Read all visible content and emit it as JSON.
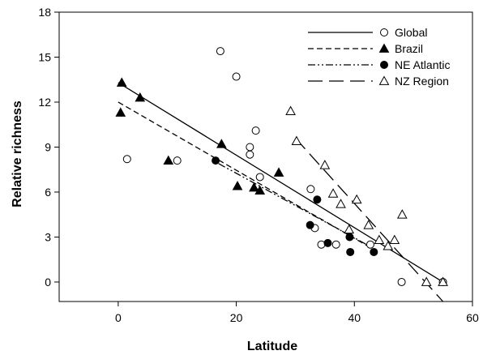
{
  "chart_data": {
    "type": "scatter",
    "xlabel": "Latitude",
    "ylabel": "Relative richness",
    "xlim": [
      -10,
      60
    ],
    "ylim": [
      -1.3,
      18
    ],
    "xticks": [
      0,
      20,
      40,
      60
    ],
    "yticks": [
      0,
      3,
      6,
      9,
      12,
      15,
      18
    ],
    "legend_position": "top-right",
    "series": [
      {
        "name": "Global",
        "marker": "open-circle",
        "line_style": "solid",
        "points": [
          [
            1.5,
            8.2
          ],
          [
            10,
            8.1
          ],
          [
            17.3,
            15.4
          ],
          [
            20,
            13.7
          ],
          [
            22.3,
            9.0
          ],
          [
            22.3,
            8.5
          ],
          [
            23.3,
            10.1
          ],
          [
            24,
            7.0
          ],
          [
            32.6,
            6.2
          ],
          [
            33.3,
            3.6
          ],
          [
            34.4,
            2.5
          ],
          [
            36.9,
            2.5
          ],
          [
            42.7,
            2.5
          ],
          [
            48,
            0.0
          ],
          [
            55,
            0.0
          ]
        ],
        "fit_line": [
          [
            0,
            13.3
          ],
          [
            55,
            0.0
          ]
        ]
      },
      {
        "name": "Brazil",
        "marker": "filled-triangle",
        "line_style": "dashed",
        "points": [
          [
            0.6,
            13.3
          ],
          [
            0.4,
            11.3
          ],
          [
            3.7,
            12.3
          ],
          [
            8.5,
            8.1
          ],
          [
            17.5,
            9.2
          ],
          [
            20.2,
            6.4
          ],
          [
            23,
            6.3
          ],
          [
            24,
            6.1
          ],
          [
            27.2,
            7.3
          ]
        ],
        "fit_line": [
          [
            0,
            12.0
          ],
          [
            42.7,
            2.3
          ]
        ]
      },
      {
        "name": "NE Atlantic",
        "marker": "filled-circle",
        "line_style": "dash-dot-dot",
        "points": [
          [
            16.5,
            8.1
          ],
          [
            32.5,
            3.8
          ],
          [
            33.7,
            5.5
          ],
          [
            35.5,
            2.6
          ],
          [
            39.2,
            3.0
          ],
          [
            39.3,
            2.0
          ],
          [
            43.3,
            2.0
          ]
        ],
        "fit_line": [
          [
            17,
            7.9
          ],
          [
            43,
            2.3
          ]
        ]
      },
      {
        "name": "NZ Region",
        "marker": "open-triangle",
        "line_style": "long-dash",
        "points": [
          [
            29.2,
            11.4
          ],
          [
            30.2,
            9.4
          ],
          [
            35,
            7.8
          ],
          [
            36.4,
            5.9
          ],
          [
            37.7,
            5.2
          ],
          [
            40.4,
            5.5
          ],
          [
            39.1,
            3.5
          ],
          [
            42.4,
            3.8
          ],
          [
            44.2,
            2.8
          ],
          [
            45.7,
            2.4
          ],
          [
            46.8,
            2.8
          ],
          [
            48.1,
            4.5
          ],
          [
            52.2,
            0.0
          ],
          [
            55,
            0.0
          ]
        ],
        "fit_line": [
          [
            30,
            9.6
          ],
          [
            55,
            -1.3
          ]
        ]
      }
    ]
  }
}
